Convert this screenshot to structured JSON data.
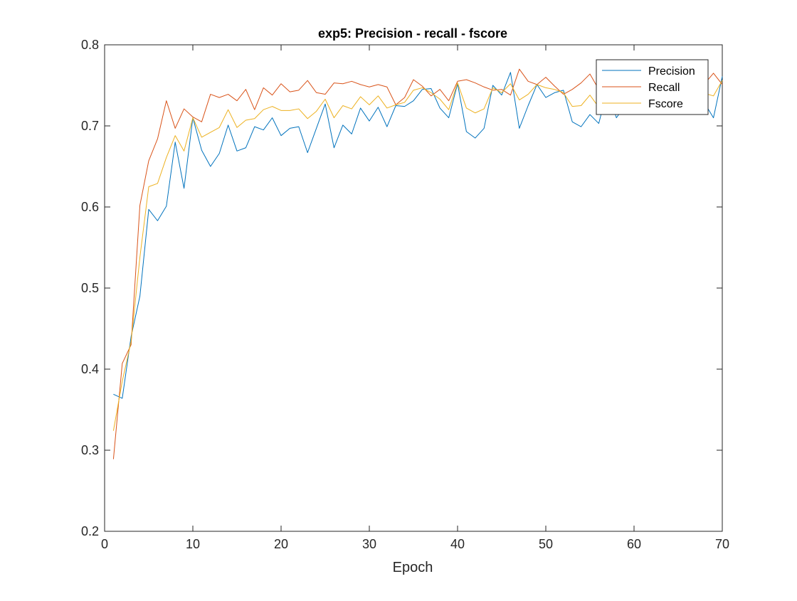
{
  "chart_data": {
    "type": "line",
    "title": "exp5: Precision - recall - fscore",
    "xlabel": "Epoch",
    "ylabel": "",
    "xlim": [
      0,
      70
    ],
    "ylim": [
      0.2,
      0.8
    ],
    "xticks": [
      0,
      10,
      20,
      30,
      40,
      50,
      60,
      70
    ],
    "yticks": [
      0.2,
      0.3,
      0.4,
      0.5,
      0.6,
      0.7,
      0.8
    ],
    "grid": false,
    "legend_position": "top-right",
    "x": [
      1,
      2,
      3,
      4,
      5,
      6,
      7,
      8,
      9,
      10,
      11,
      12,
      13,
      14,
      15,
      16,
      17,
      18,
      19,
      20,
      21,
      22,
      23,
      24,
      25,
      26,
      27,
      28,
      29,
      30,
      31,
      32,
      33,
      34,
      35,
      36,
      37,
      38,
      39,
      40,
      41,
      42,
      43,
      44,
      45,
      46,
      47,
      48,
      49,
      50,
      51,
      52,
      53,
      54,
      55,
      56,
      57,
      58,
      59,
      60,
      61,
      62,
      63,
      64,
      65,
      66,
      67,
      68,
      69,
      70
    ],
    "series": [
      {
        "name": "Precision",
        "color": "#0072BD",
        "values": [
          0.369,
          0.364,
          0.44,
          0.49,
          0.597,
          0.583,
          0.601,
          0.68,
          0.623,
          0.71,
          0.67,
          0.65,
          0.666,
          0.701,
          0.669,
          0.673,
          0.699,
          0.695,
          0.71,
          0.688,
          0.697,
          0.699,
          0.667,
          0.697,
          0.727,
          0.673,
          0.701,
          0.69,
          0.722,
          0.706,
          0.723,
          0.699,
          0.725,
          0.724,
          0.731,
          0.745,
          0.746,
          0.722,
          0.71,
          0.752,
          0.693,
          0.685,
          0.697,
          0.75,
          0.738,
          0.766,
          0.697,
          0.725,
          0.751,
          0.735,
          0.741,
          0.744,
          0.705,
          0.699,
          0.714,
          0.703,
          0.745,
          0.71,
          0.725,
          0.74,
          0.735,
          0.742,
          0.728,
          0.738,
          0.726,
          0.741,
          0.735,
          0.728,
          0.71,
          0.761
        ]
      },
      {
        "name": "Recall",
        "color": "#D95319",
        "values": [
          0.289,
          0.407,
          0.43,
          0.602,
          0.657,
          0.684,
          0.731,
          0.697,
          0.721,
          0.711,
          0.705,
          0.739,
          0.735,
          0.739,
          0.731,
          0.745,
          0.72,
          0.747,
          0.738,
          0.752,
          0.742,
          0.744,
          0.756,
          0.741,
          0.739,
          0.753,
          0.752,
          0.755,
          0.751,
          0.748,
          0.751,
          0.748,
          0.726,
          0.735,
          0.757,
          0.749,
          0.737,
          0.745,
          0.731,
          0.755,
          0.757,
          0.753,
          0.748,
          0.744,
          0.745,
          0.738,
          0.77,
          0.755,
          0.751,
          0.76,
          0.749,
          0.739,
          0.745,
          0.753,
          0.764,
          0.745,
          0.752,
          0.744,
          0.757,
          0.75,
          0.746,
          0.753,
          0.749,
          0.744,
          0.756,
          0.743,
          0.752,
          0.752,
          0.765,
          0.751
        ]
      },
      {
        "name": "Fscore",
        "color": "#EDB120",
        "values": [
          0.324,
          0.385,
          0.434,
          0.538,
          0.625,
          0.629,
          0.661,
          0.688,
          0.669,
          0.71,
          0.686,
          0.692,
          0.698,
          0.72,
          0.698,
          0.707,
          0.709,
          0.72,
          0.724,
          0.719,
          0.719,
          0.721,
          0.709,
          0.718,
          0.733,
          0.71,
          0.725,
          0.721,
          0.736,
          0.726,
          0.737,
          0.722,
          0.726,
          0.729,
          0.744,
          0.747,
          0.741,
          0.733,
          0.72,
          0.753,
          0.722,
          0.716,
          0.721,
          0.747,
          0.741,
          0.752,
          0.732,
          0.739,
          0.751,
          0.747,
          0.745,
          0.741,
          0.724,
          0.725,
          0.738,
          0.723,
          0.748,
          0.726,
          0.74,
          0.745,
          0.74,
          0.747,
          0.738,
          0.741,
          0.74,
          0.742,
          0.743,
          0.74,
          0.737,
          0.756
        ]
      }
    ]
  }
}
